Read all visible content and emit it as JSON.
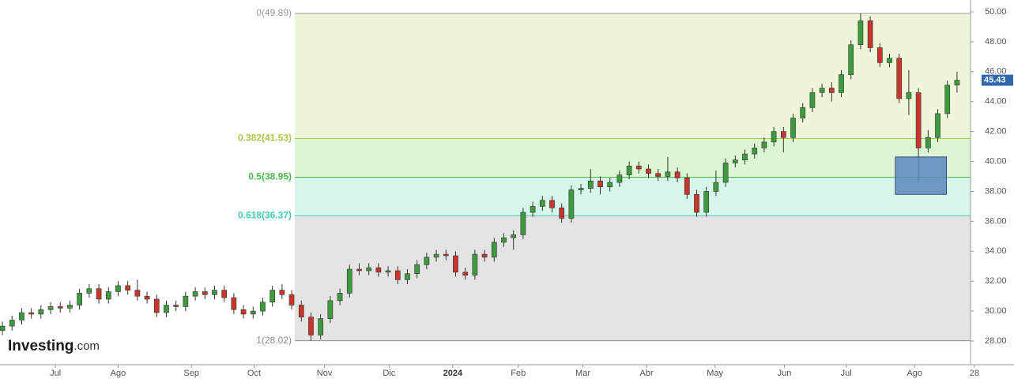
{
  "chart_data": {
    "type": "candlestick",
    "open": [
      28.7,
      29.0,
      29.4,
      29.9,
      29.8,
      30.1,
      30.3,
      30.2,
      30.4,
      31.2,
      31.5,
      30.8,
      31.3,
      31.7,
      31.4,
      31.0,
      30.8,
      29.9,
      30.4,
      30.3,
      31.0,
      31.3,
      31.1,
      31.4,
      30.9,
      30.1,
      29.8,
      30.0,
      30.6,
      31.4,
      31.1,
      30.4,
      29.6,
      28.4,
      29.5,
      30.7,
      31.2,
      32.8,
      32.7,
      32.9,
      32.6,
      32.7,
      32.1,
      32.5,
      33.1,
      33.6,
      33.8,
      33.7,
      32.6,
      32.4,
      33.8,
      33.6,
      34.6,
      34.9,
      35.1,
      36.6,
      37.0,
      37.4,
      36.9,
      36.2,
      38.1,
      38.2,
      38.7,
      38.3,
      38.6,
      39.1,
      39.7,
      39.5,
      39.2,
      39.0,
      39.3,
      38.9,
      37.8,
      36.6,
      38.0,
      38.6,
      39.9,
      40.1,
      40.5,
      40.9,
      41.3,
      42.0,
      41.6,
      42.9,
      43.6,
      44.6,
      44.9,
      44.6,
      45.8,
      47.8,
      49.4,
      47.6,
      46.6,
      46.9,
      44.2,
      44.6,
      40.9,
      41.6,
      43.2,
      45.1
    ],
    "high": [
      29.3,
      29.7,
      30.2,
      30.2,
      30.4,
      30.6,
      30.6,
      30.7,
      31.5,
      31.8,
      31.8,
      31.6,
      32.0,
      32.0,
      32.1,
      31.3,
      31.1,
      30.7,
      30.7,
      31.3,
      31.6,
      31.6,
      31.7,
      31.7,
      31.2,
      30.4,
      30.3,
      30.9,
      31.7,
      31.8,
      31.4,
      30.7,
      29.9,
      29.8,
      31.0,
      31.5,
      33.1,
      33.2,
      33.2,
      33.2,
      33.0,
      33.0,
      32.8,
      33.4,
      33.9,
      34.1,
      34.1,
      34.0,
      32.9,
      34.1,
      34.1,
      34.9,
      35.2,
      35.4,
      36.9,
      37.3,
      37.7,
      37.7,
      37.2,
      38.4,
      38.5,
      39.5,
      39.0,
      38.9,
      39.4,
      40.0,
      40.0,
      39.8,
      39.5,
      40.3,
      39.6,
      39.2,
      38.1,
      38.3,
      39.4,
      40.2,
      40.4,
      40.8,
      41.2,
      41.6,
      42.3,
      42.3,
      43.2,
      43.9,
      44.9,
      45.2,
      45.3,
      46.1,
      48.1,
      49.89,
      49.7,
      47.9,
      47.2,
      47.2,
      46.1,
      44.9,
      42.1,
      43.5,
      45.4,
      46.0
    ],
    "low": [
      28.4,
      28.7,
      29.1,
      29.5,
      29.5,
      29.8,
      29.9,
      29.9,
      30.1,
      30.9,
      30.5,
      30.5,
      31.0,
      31.1,
      30.7,
      30.5,
      29.6,
      29.6,
      30.0,
      30.0,
      30.7,
      30.8,
      30.8,
      30.6,
      29.8,
      29.5,
      29.5,
      29.7,
      30.3,
      30.8,
      30.1,
      29.3,
      28.02,
      28.1,
      29.2,
      30.4,
      30.9,
      32.4,
      32.4,
      32.3,
      32.3,
      31.8,
      31.8,
      32.2,
      32.8,
      33.3,
      33.4,
      32.3,
      32.1,
      32.1,
      33.3,
      33.3,
      34.3,
      34.1,
      34.8,
      36.3,
      36.7,
      36.6,
      35.9,
      35.9,
      37.8,
      37.9,
      37.8,
      38.0,
      38.3,
      38.8,
      39.2,
      38.9,
      38.7,
      38.7,
      38.6,
      37.5,
      36.3,
      36.3,
      37.7,
      38.3,
      39.6,
      39.8,
      40.2,
      40.6,
      41.0,
      40.6,
      41.3,
      42.6,
      43.3,
      44.3,
      44.0,
      44.3,
      45.5,
      47.5,
      47.3,
      46.3,
      46.3,
      43.9,
      43.1,
      38.6,
      40.6,
      41.3,
      42.9,
      44.6
    ],
    "close": [
      29.0,
      29.4,
      29.9,
      29.8,
      30.1,
      30.3,
      30.2,
      30.4,
      31.2,
      31.5,
      30.8,
      31.3,
      31.7,
      31.4,
      31.0,
      30.8,
      29.9,
      30.4,
      30.3,
      31.0,
      31.3,
      31.1,
      31.4,
      30.9,
      30.1,
      29.8,
      30.0,
      30.6,
      31.4,
      31.1,
      30.4,
      29.6,
      28.4,
      29.5,
      30.7,
      31.2,
      32.8,
      32.7,
      32.9,
      32.6,
      32.7,
      32.1,
      32.5,
      33.1,
      33.6,
      33.8,
      33.7,
      32.6,
      32.4,
      33.8,
      33.6,
      34.6,
      34.9,
      35.1,
      36.6,
      37.0,
      37.4,
      36.9,
      36.2,
      38.1,
      38.2,
      38.7,
      38.3,
      38.6,
      39.1,
      39.7,
      39.5,
      39.2,
      39.0,
      39.3,
      38.9,
      37.8,
      36.6,
      38.0,
      38.6,
      39.9,
      40.1,
      40.5,
      40.9,
      41.3,
      42.0,
      41.6,
      42.9,
      43.6,
      44.6,
      44.9,
      44.6,
      45.8,
      47.8,
      49.4,
      47.6,
      46.6,
      46.9,
      44.2,
      44.6,
      40.9,
      41.6,
      43.2,
      45.1,
      45.43
    ],
    "up_color": "#3d9a3d",
    "down_color": "#c9352b",
    "ylim": [
      26.42,
      50.79
    ],
    "yticks": [
      {
        "value": 28,
        "label": "28.00"
      },
      {
        "value": 30,
        "label": "30.00"
      },
      {
        "value": 32,
        "label": "32.00"
      },
      {
        "value": 34,
        "label": "34.00"
      },
      {
        "value": 36,
        "label": "36.00"
      },
      {
        "value": 38,
        "label": "38.00"
      },
      {
        "value": 40,
        "label": "40.00"
      },
      {
        "value": 42,
        "label": "42.00"
      },
      {
        "value": 44,
        "label": "44.00"
      },
      {
        "value": 46,
        "label": "46.00"
      },
      {
        "value": 48,
        "label": "48.00"
      },
      {
        "value": 50,
        "label": "50.00"
      }
    ],
    "xlim": [
      -0.25,
      100.4
    ],
    "xticks": [
      {
        "value": 5.5,
        "label": "Jul"
      },
      {
        "value": 12.0,
        "label": "Ago"
      },
      {
        "value": 19.6,
        "label": "Sep"
      },
      {
        "value": 26.1,
        "label": "Oct"
      },
      {
        "value": 33.4,
        "label": "Nov"
      },
      {
        "value": 40.1,
        "label": "Dic"
      },
      {
        "value": 46.7,
        "label": "2024"
      },
      {
        "value": 53.5,
        "label": "Feb"
      },
      {
        "value": 60.2,
        "label": "Mar"
      },
      {
        "value": 66.8,
        "label": "Abr"
      },
      {
        "value": 73.9,
        "label": "May"
      },
      {
        "value": 81.1,
        "label": "Jun"
      },
      {
        "value": 87.5,
        "label": "Jul"
      },
      {
        "value": 94.6,
        "label": "Ago"
      },
      {
        "value": 100.8,
        "label": "28"
      }
    ],
    "fibonacci": [
      {
        "label": "0(49.89)",
        "value": 49.89,
        "color": "#9a9a9a",
        "fill": "#eef6d9"
      },
      {
        "label": "0.382(41.53)",
        "value": 41.53,
        "color": "#a9c84a",
        "fill": "#dcf6d4"
      },
      {
        "label": "0.5(38.95)",
        "value": 38.95,
        "color": "#4cb84c",
        "fill": "#d6f6ea"
      },
      {
        "label": "0.618(36.37)",
        "value": 36.37,
        "color": "#45ccb4",
        "fill": "#e4e4e4"
      },
      {
        "label": "1(28.02)",
        "value": 28.02,
        "color": "#8a8a8a"
      }
    ],
    "highlight_box": {
      "x": [
        92.6,
        97.9
      ],
      "y": [
        37.8,
        40.3
      ],
      "color": "#5d86bd"
    },
    "last_price": 45.43,
    "last_price_color": "#2f67b1",
    "logo": {
      "name": "Investing",
      "suffix": ".com"
    }
  }
}
